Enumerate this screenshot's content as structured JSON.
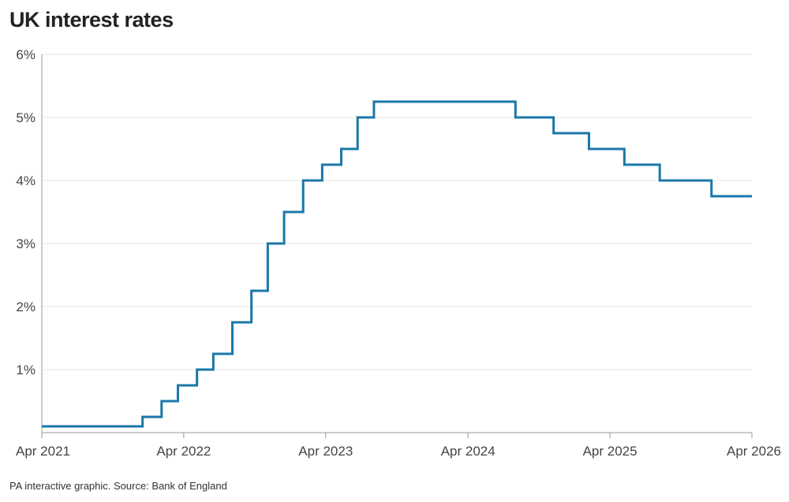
{
  "title": "UK interest rates",
  "source": "PA interactive graphic. Source: Bank of England",
  "colors": {
    "line": "#1a77a8",
    "grid": "#e6e6e6",
    "axis": "#999999"
  },
  "chart_data": {
    "type": "line",
    "step": true,
    "title": "UK interest rates",
    "xlabel": "",
    "ylabel": "",
    "y_tick_labels": [
      "1%",
      "2%",
      "3%",
      "4%",
      "5%",
      "6%"
    ],
    "y_ticks": [
      1,
      2,
      3,
      4,
      5,
      6
    ],
    "ylim": [
      0,
      6
    ],
    "x_tick_labels": [
      "Apr 2021",
      "Apr 2022",
      "Apr 2023",
      "Apr 2024",
      "Apr 2025",
      "Apr 2026"
    ],
    "x_ticks": [
      "2021-04-01",
      "2022-04-01",
      "2023-04-01",
      "2024-04-01",
      "2025-04-01",
      "2026-04-01"
    ],
    "xlim": [
      "2021-04-01",
      "2026-04-01"
    ],
    "grid": true,
    "series": [
      {
        "points": [
          {
            "x": "2021-04-01",
            "y": 0.1
          },
          {
            "x": "2021-12-16",
            "y": 0.25
          },
          {
            "x": "2022-02-03",
            "y": 0.5
          },
          {
            "x": "2022-03-17",
            "y": 0.75
          },
          {
            "x": "2022-05-05",
            "y": 1.0
          },
          {
            "x": "2022-06-16",
            "y": 1.25
          },
          {
            "x": "2022-08-04",
            "y": 1.75
          },
          {
            "x": "2022-09-22",
            "y": 2.25
          },
          {
            "x": "2022-11-03",
            "y": 3.0
          },
          {
            "x": "2022-12-15",
            "y": 3.5
          },
          {
            "x": "2023-02-02",
            "y": 4.0
          },
          {
            "x": "2023-03-23",
            "y": 4.25
          },
          {
            "x": "2023-05-11",
            "y": 4.5
          },
          {
            "x": "2023-06-22",
            "y": 5.0
          },
          {
            "x": "2023-08-03",
            "y": 5.25
          },
          {
            "x": "2024-08-01",
            "y": 5.0
          },
          {
            "x": "2024-11-07",
            "y": 4.75
          },
          {
            "x": "2025-02-06",
            "y": 4.5
          },
          {
            "x": "2025-05-08",
            "y": 4.25
          },
          {
            "x": "2025-08-07",
            "y": 4.0
          },
          {
            "x": "2025-12-18",
            "y": 3.75
          },
          {
            "x": "2026-04-01",
            "y": 3.75
          }
        ]
      }
    ]
  }
}
